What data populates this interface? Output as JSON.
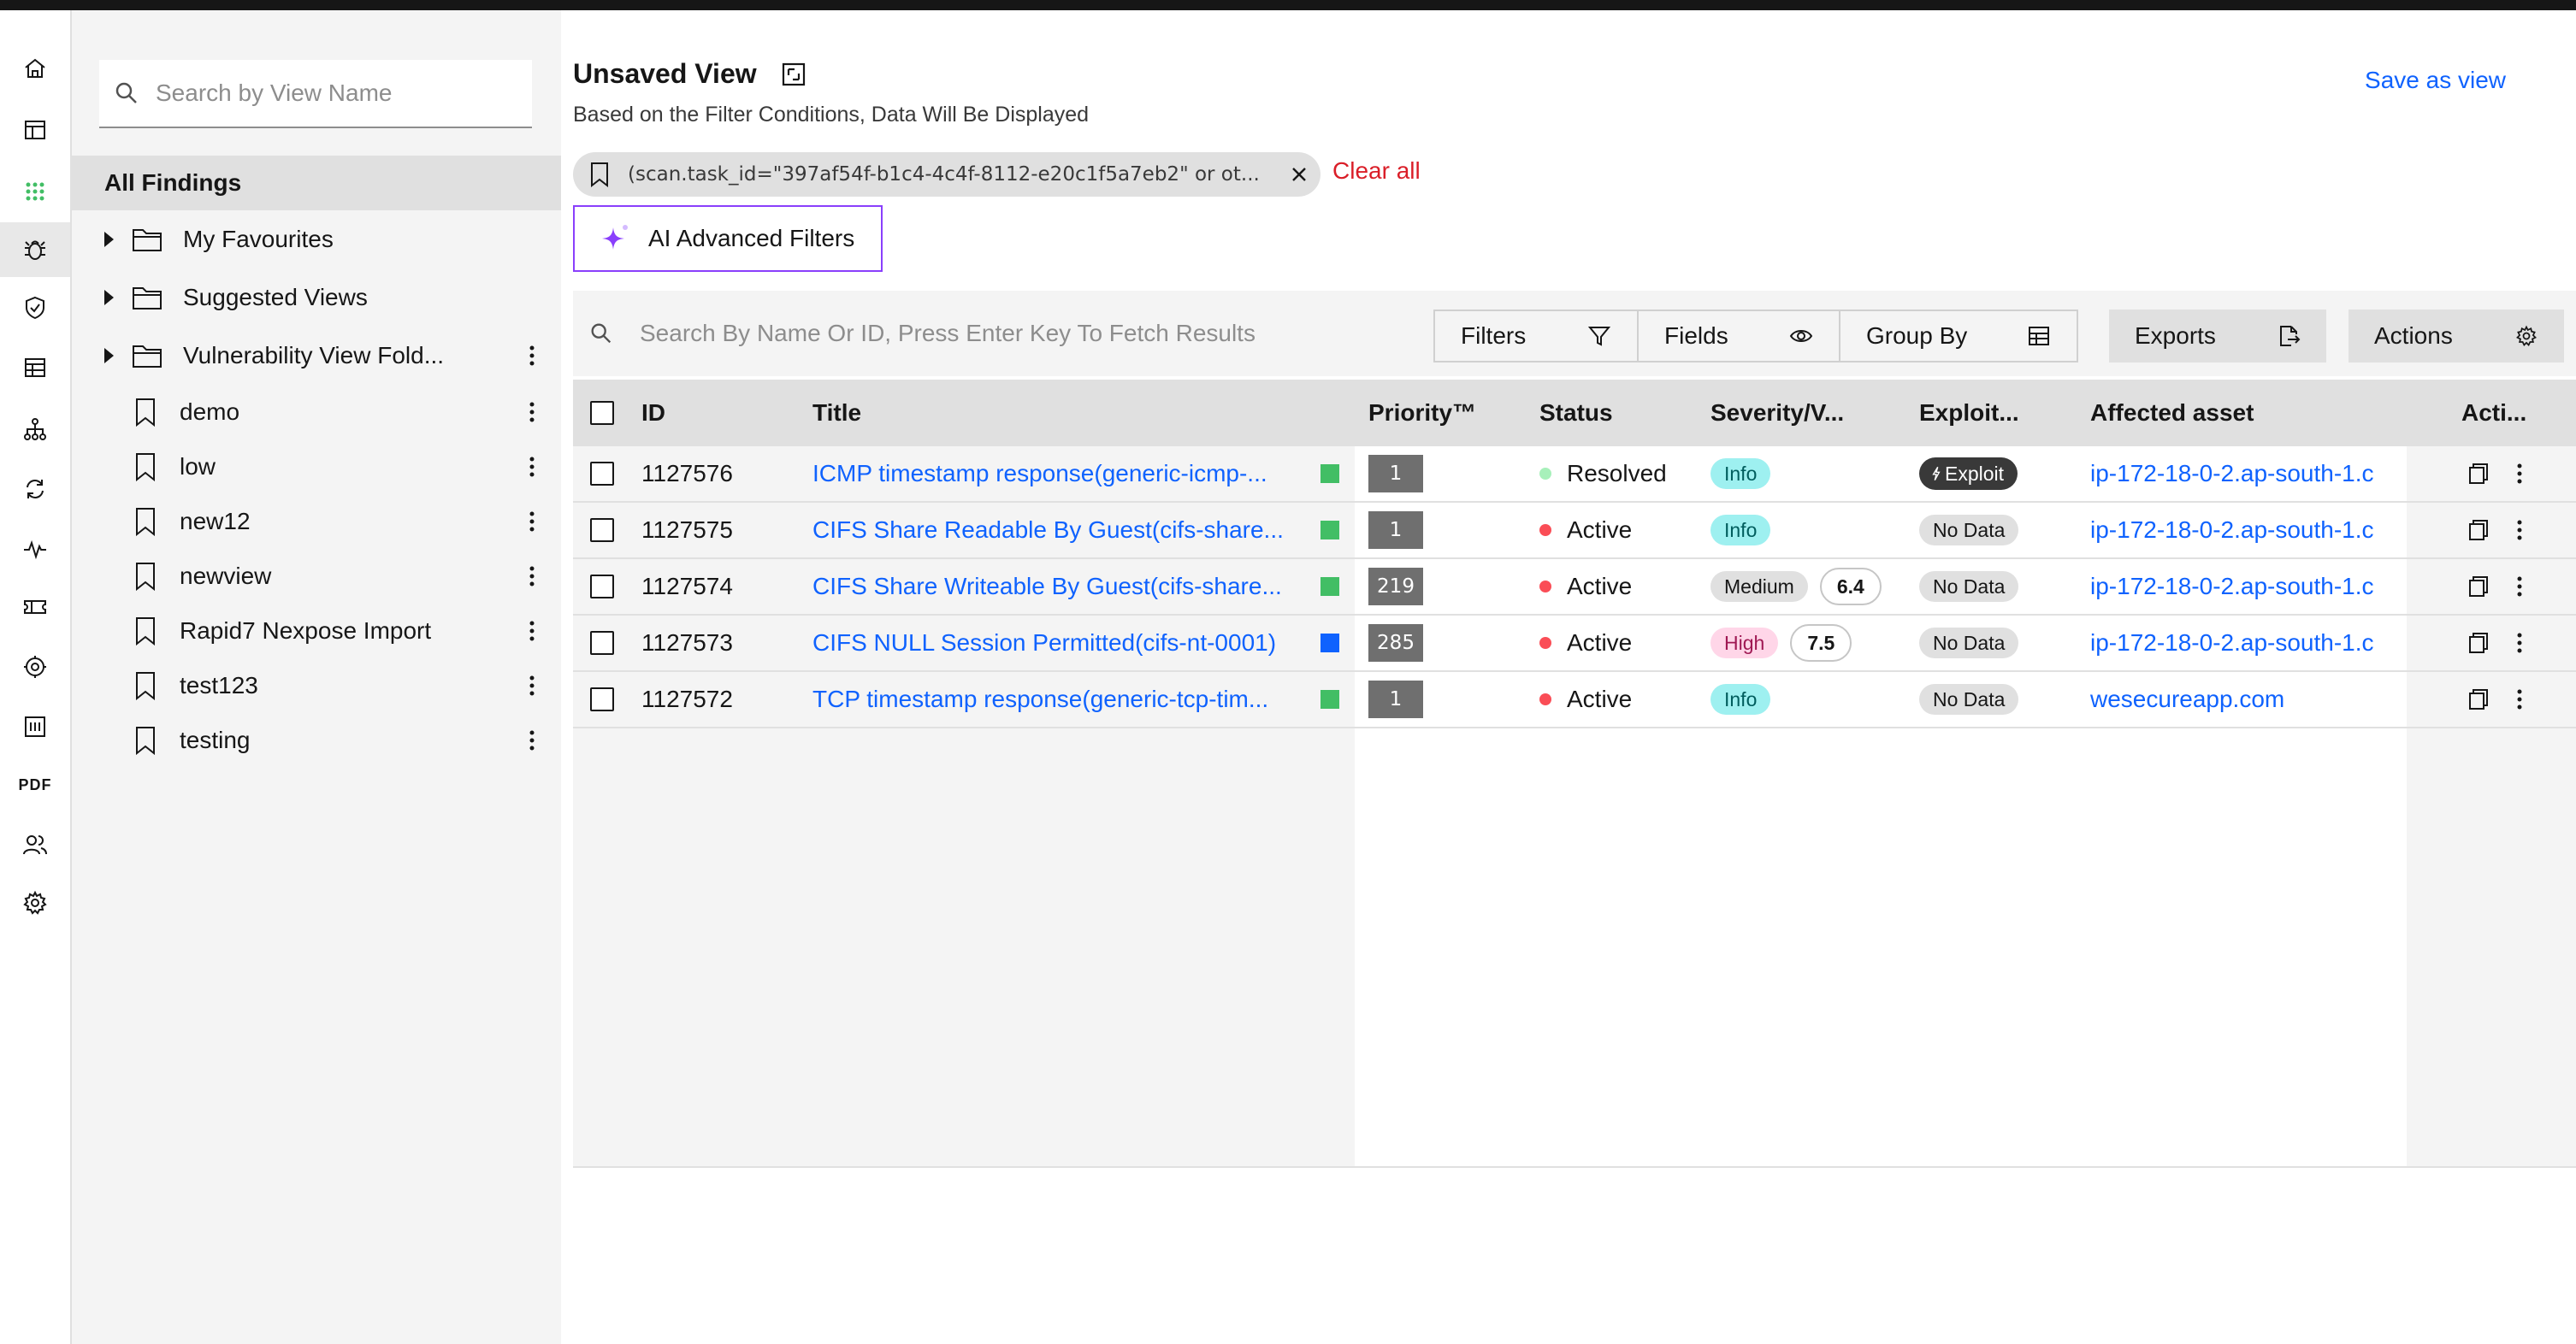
{
  "rail": {
    "items": [
      "home-icon",
      "dashboard-icon",
      "apps-grid-icon",
      "bug-icon",
      "shield-check-icon",
      "data-table-icon",
      "network-icon",
      "sync-icon",
      "activity-icon",
      "ticket-icon",
      "settings-scan-icon",
      "report-icon",
      "pdf-icon",
      "users-icon",
      "settings-icon"
    ],
    "pdf_label": "PDF",
    "active_index": 3
  },
  "sidebar": {
    "search_placeholder": "Search by View Name",
    "all_findings": "All Findings",
    "folders": [
      {
        "label": "My Favourites"
      },
      {
        "label": "Suggested Views"
      },
      {
        "label": "Vulnerability View Fold..."
      }
    ],
    "views": [
      {
        "label": "demo"
      },
      {
        "label": "low"
      },
      {
        "label": "new12"
      },
      {
        "label": "newview"
      },
      {
        "label": "Rapid7 Nexpose Import"
      },
      {
        "label": "test123"
      },
      {
        "label": "testing"
      }
    ]
  },
  "header": {
    "title": "Unsaved View",
    "subtitle": "Based on the Filter Conditions, Data Will Be Displayed",
    "save_as_view": "Save as view",
    "filter_chip": "(scan.task_id=\"397af54f-b1c4-4c4f-8112-e20c1f5a7eb2\" or ot...",
    "clear_all": "Clear all",
    "ai_filters": "AI Advanced Filters"
  },
  "toolbar": {
    "search_placeholder": "Search By Name Or ID, Press Enter Key To Fetch Results",
    "filters": "Filters",
    "fields": "Fields",
    "group_by": "Group By",
    "exports": "Exports",
    "actions": "Actions"
  },
  "table": {
    "columns": {
      "id": "ID",
      "title": "Title",
      "priority": "Priority™",
      "status": "Status",
      "severity": "Severity/V...",
      "exploit": "Exploit...",
      "asset": "Affected asset",
      "actions": "Acti..."
    },
    "rows": [
      {
        "id": "1127576",
        "title": "ICMP timestamp response(generic-icmp-...",
        "marker_color": "#42be65",
        "priority": "1",
        "status": "Resolved",
        "status_color": "#a7f0ba",
        "severity": "Info",
        "severity_bg": "#9ef0f0",
        "severity_fg": "#005d5d",
        "score": "",
        "exploit": "Exploit",
        "asset": "ip-172-18-0-2.ap-south-1.c"
      },
      {
        "id": "1127575",
        "title": "CIFS Share Readable By Guest(cifs-share...",
        "marker_color": "#42be65",
        "priority": "1",
        "status": "Active",
        "status_color": "#fa4d56",
        "severity": "Info",
        "severity_bg": "#9ef0f0",
        "severity_fg": "#005d5d",
        "score": "",
        "exploit": "No Data",
        "asset": "ip-172-18-0-2.ap-south-1.c"
      },
      {
        "id": "1127574",
        "title": "CIFS Share Writeable By Guest(cifs-share...",
        "marker_color": "#42be65",
        "priority": "219",
        "status": "Active",
        "status_color": "#fa4d56",
        "severity": "Medium",
        "severity_bg": "#e0e0e0",
        "severity_fg": "#161616",
        "score": "6.4",
        "exploit": "No Data",
        "asset": "ip-172-18-0-2.ap-south-1.c"
      },
      {
        "id": "1127573",
        "title": "CIFS NULL Session Permitted(cifs-nt-0001)",
        "marker_color": "#0f62fe",
        "priority": "285",
        "status": "Active",
        "status_color": "#fa4d56",
        "severity": "High",
        "severity_bg": "#ffd6e8",
        "severity_fg": "#9f1853",
        "score": "7.5",
        "exploit": "No Data",
        "asset": "ip-172-18-0-2.ap-south-1.c"
      },
      {
        "id": "1127572",
        "title": "TCP timestamp response(generic-tcp-tim...",
        "marker_color": "#42be65",
        "priority": "1",
        "status": "Active",
        "status_color": "#fa4d56",
        "severity": "Info",
        "severity_bg": "#9ef0f0",
        "severity_fg": "#005d5d",
        "score": "",
        "exploit": "No Data",
        "asset": "wesecureapp.com"
      }
    ]
  }
}
